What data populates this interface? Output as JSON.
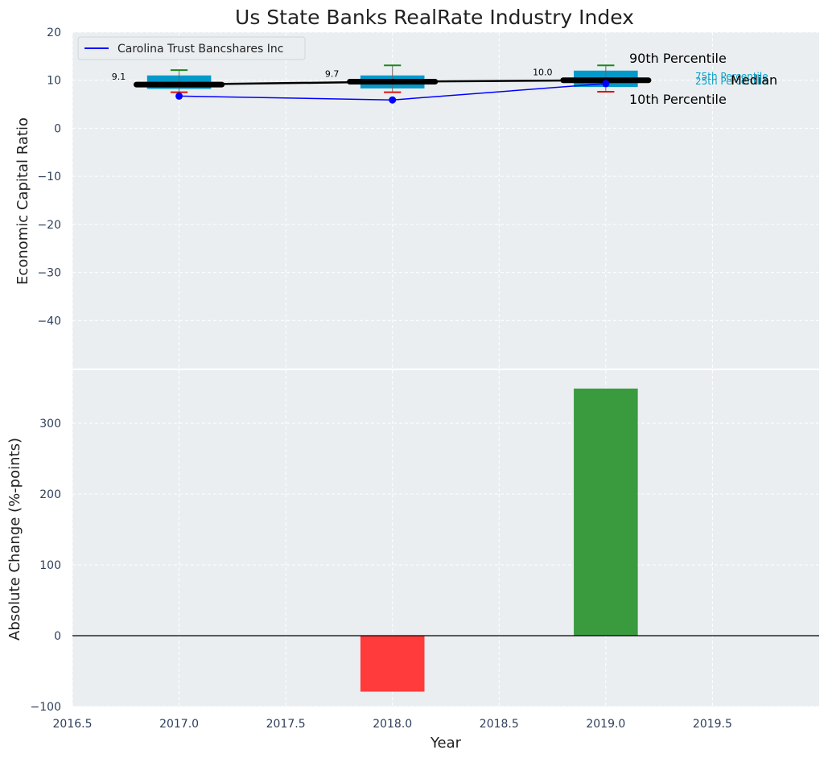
{
  "chart_data": [
    {
      "type": "box-line",
      "title": "Us State Banks RealRate Industry Index",
      "ylabel": "Economic Capital Ratio",
      "xlim": [
        2016.5,
        2020.0
      ],
      "ylim": [
        -50,
        20
      ],
      "yticks": [
        20,
        10,
        0,
        -10,
        -20,
        -30,
        -40
      ],
      "grid": true,
      "legend": {
        "position": "top-left",
        "entries": [
          "Carolina Trust Bancshares Inc"
        ]
      },
      "company_series": {
        "name": "Carolina Trust Bancshares Inc",
        "color": "#0000ff",
        "x": [
          2017,
          2018,
          2019
        ],
        "y": [
          6.7,
          5.9,
          9.3
        ]
      },
      "percentiles": [
        {
          "x": 2017,
          "p10": 7.5,
          "p25": 8.2,
          "median": 9.1,
          "p75": 11.0,
          "p90": 12.1
        },
        {
          "x": 2018,
          "p10": 7.5,
          "p25": 8.3,
          "median": 9.7,
          "p75": 11.0,
          "p90": 13.1
        },
        {
          "x": 2019,
          "p10": 7.6,
          "p25": 8.6,
          "median": 10.0,
          "p75": 12.0,
          "p90": 13.1
        }
      ],
      "median_labels": [
        "9.1",
        "9.7",
        "10.0"
      ],
      "annotations": {
        "p90": "90th Percentile",
        "p10": "10th Percentile",
        "median": "Median",
        "p75": "75th Percentile",
        "p25": "25th Percentile"
      },
      "colors": {
        "box": "#0399c9",
        "median": "#000000",
        "p90_cap": "#1a8a1a",
        "p10_cap": "#e01010",
        "company": "#0000ff",
        "p75_p25_text": "#0aa0c8"
      }
    },
    {
      "type": "bar",
      "ylabel": "Absolute Change (%-points)",
      "xlabel": "Year",
      "xlim": [
        2016.5,
        2020.0
      ],
      "ylim": [
        -100,
        375
      ],
      "xticks": [
        "2016.5",
        "2017.0",
        "2017.5",
        "2018.0",
        "2018.5",
        "2019.0",
        "2019.5"
      ],
      "yticks": [
        300,
        200,
        100,
        0,
        -100
      ],
      "grid": true,
      "x": [
        2018,
        2019
      ],
      "values": [
        -79,
        349
      ],
      "colors": [
        "#ff3b3b",
        "#3a9a3e"
      ]
    }
  ]
}
